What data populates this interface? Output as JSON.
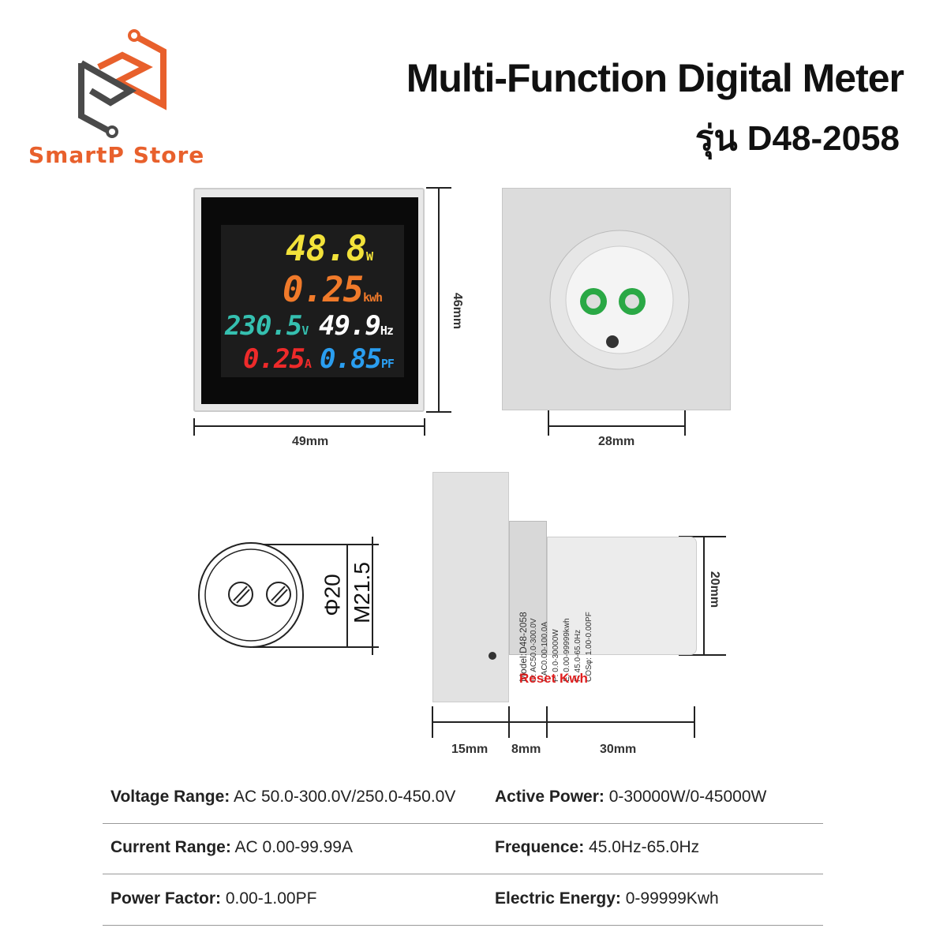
{
  "brand": {
    "name": "SmartP Store",
    "colors": {
      "orange": "#e8602c",
      "gray": "#4a4a4a"
    }
  },
  "header": {
    "title": "Multi-Function Digital Meter",
    "model": "รุ่น D48-2058"
  },
  "display": {
    "power": {
      "value": "48.8",
      "unit": "W",
      "color": "#f2e23a"
    },
    "energy": {
      "value": "0.25",
      "unit": "kwh",
      "color": "#f07a2a"
    },
    "voltage": {
      "value": "230.5",
      "unit": "V",
      "color": "#35c0b0"
    },
    "frequency": {
      "value": "49.9",
      "unit": "Hz",
      "color": "#ffffff"
    },
    "current": {
      "value": "0.25",
      "unit": "A",
      "color": "#ee2a2a"
    },
    "pf": {
      "value": "0.85",
      "unit": "PF",
      "color": "#2a9ef0"
    }
  },
  "dimensions": {
    "front_width": "49mm",
    "front_height": "46mm",
    "back_width": "28mm",
    "phi": "Φ20",
    "thread": "M21.5",
    "body_dia": "20mm",
    "panel_depth": "15mm",
    "ring": "8mm",
    "body_len": "30mm"
  },
  "side_label": {
    "lines": [
      "Model:D48-2058",
      "U: AC50.0-300.0V",
      "I: AC0.00-100.0A",
      "P: 0.0-30000W",
      "E: 0.00-99999kwh",
      "F: 45.0-65.0Hz",
      "COSφ: 1.00-0.00PF"
    ]
  },
  "reset_label": "Reset Kwh",
  "specs": [
    {
      "label": "Voltage Range:",
      "value": " AC 50.0-300.0V/250.0-450.0V"
    },
    {
      "label": "Active Power:",
      "value": " 0-30000W/0-45000W"
    },
    {
      "label": "Current Range:",
      "value": " AC 0.00-99.99A"
    },
    {
      "label": "Frequence:",
      "value": " 45.0Hz-65.0Hz"
    },
    {
      "label": "Power Factor:",
      "value": " 0.00-1.00PF"
    },
    {
      "label": "Electric Energy:",
      "value": " 0-99999Kwh"
    }
  ]
}
